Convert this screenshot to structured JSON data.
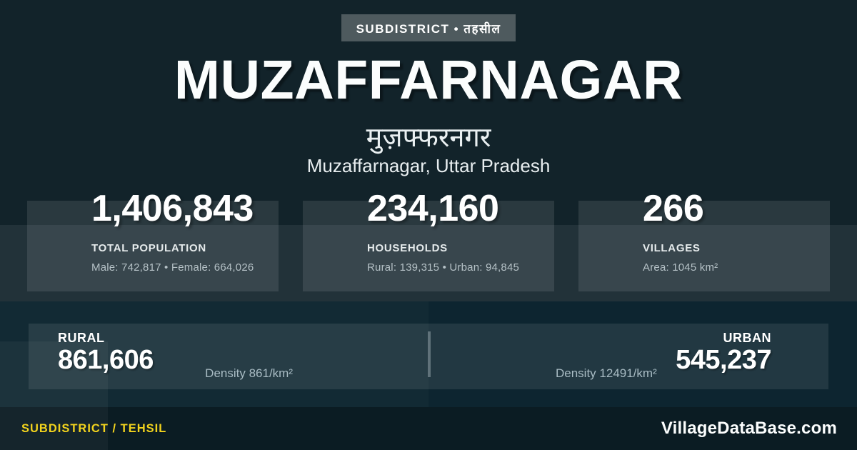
{
  "colors": {
    "background": "#12232a",
    "bottom_band": "#0d2530",
    "footer_background": "#0b1c23",
    "badge_background": "#4e5a5e",
    "accent_yellow": "#f2d31d",
    "text_primary": "#ffffff",
    "text_muted": "#b5c1c6"
  },
  "badge": {
    "label": "SUBDISTRICT • तहसील"
  },
  "header": {
    "title": "MUZAFFARNAGAR",
    "title_hindi": "मुज़फ्फरनगर",
    "location": "Muzaffarnagar, Uttar Pradesh"
  },
  "stats": [
    {
      "value": "1,406,843",
      "label": "TOTAL POPULATION",
      "detail": "Male: 742,817 • Female: 664,026"
    },
    {
      "value": "234,160",
      "label": "HOUSEHOLDS",
      "detail": "Rural: 139,315 • Urban: 94,845"
    },
    {
      "value": "266",
      "label": "VILLAGES",
      "detail": "Area: 1045 km²"
    }
  ],
  "split": {
    "rural": {
      "label": "RURAL",
      "value": "861,606",
      "density": "Density 861/km²"
    },
    "urban": {
      "label": "URBAN",
      "value": "545,237",
      "density": "Density 12491/km²"
    }
  },
  "footer": {
    "type_label": "SUBDISTRICT / TEHSIL",
    "site": "VillageDataBase.com"
  }
}
